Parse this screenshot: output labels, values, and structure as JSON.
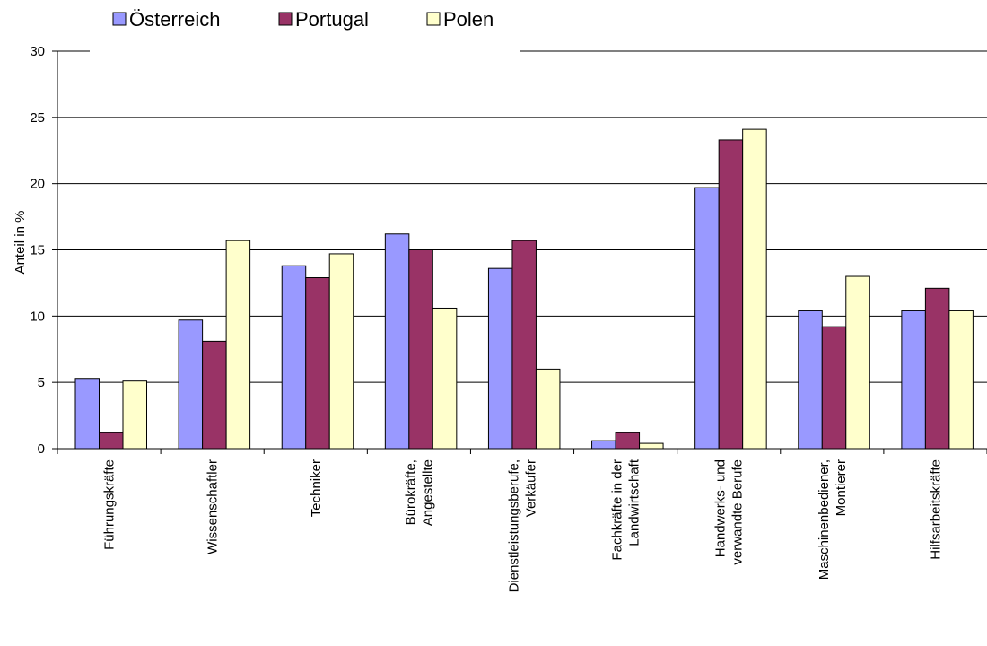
{
  "chart_data": {
    "type": "bar",
    "title": "",
    "xlabel": "",
    "ylabel": "Anteil in %",
    "ylim": [
      0,
      30
    ],
    "yticks": [
      0,
      5,
      10,
      15,
      20,
      25,
      30
    ],
    "grid": true,
    "legend_position": "top-left",
    "categories": [
      [
        "Führungskräfte"
      ],
      [
        "Wissenschaftler"
      ],
      [
        "Techniker"
      ],
      [
        "Bürokräfte,",
        "Angestellte"
      ],
      [
        "Dienstleistungsberufe,",
        "Verkäufer"
      ],
      [
        "Fachkräfte in der",
        "Landwirtschaft"
      ],
      [
        "Handwerks- und",
        "verwandte Berufe"
      ],
      [
        "Maschinenbediener,",
        "Montierer"
      ],
      [
        "Hilfsarbeitskräfte"
      ]
    ],
    "series": [
      {
        "name": "Österreich",
        "color": "#9999ff",
        "values": [
          5.3,
          9.7,
          13.8,
          16.2,
          13.6,
          0.6,
          19.7,
          10.4,
          10.4
        ]
      },
      {
        "name": "Portugal",
        "color": "#993366",
        "values": [
          1.2,
          8.1,
          12.9,
          15.0,
          15.7,
          1.2,
          23.3,
          9.2,
          12.1
        ]
      },
      {
        "name": "Polen",
        "color": "#ffffcc",
        "values": [
          5.1,
          15.7,
          14.7,
          10.6,
          6.0,
          0.4,
          24.1,
          13.0,
          10.4
        ]
      }
    ]
  }
}
